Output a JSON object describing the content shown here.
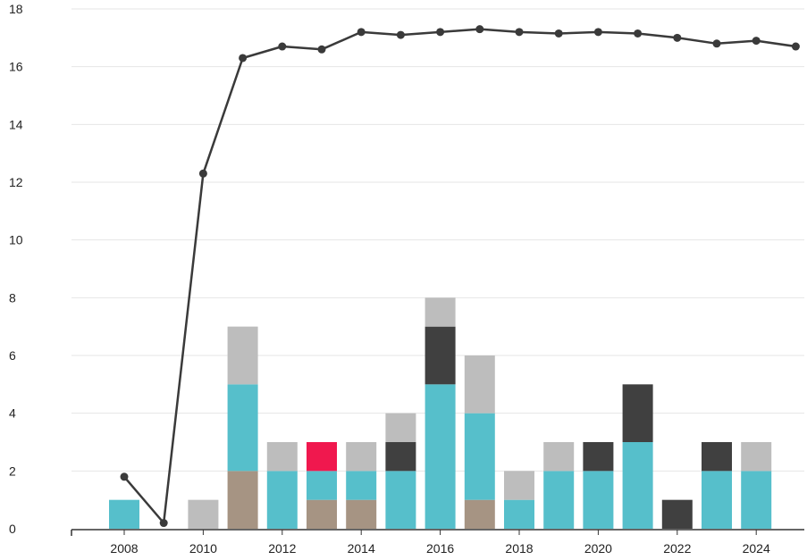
{
  "chart_data": {
    "type": "bar",
    "bar_layout": "stacked",
    "x": [
      2008,
      2009,
      2010,
      2011,
      2012,
      2013,
      2014,
      2015,
      2016,
      2017,
      2018,
      2019,
      2020,
      2021,
      2022,
      2023,
      2024,
      2025
    ],
    "x_tick_labels": [
      "2008",
      "2010",
      "2012",
      "2014",
      "2016",
      "2018",
      "2020",
      "2022",
      "2024"
    ],
    "y_tick_labels": [
      "0",
      "2",
      "4",
      "6",
      "8",
      "10",
      "12",
      "14",
      "16",
      "18"
    ],
    "ylim": [
      0,
      18
    ],
    "grid": true,
    "series": [
      {
        "color": "#a69483",
        "values": [
          0,
          0,
          0,
          2,
          0,
          1,
          1,
          0,
          0,
          1,
          0,
          0,
          0,
          0,
          0,
          0,
          0,
          0
        ]
      },
      {
        "color": "#56bfcb",
        "values": [
          1,
          0,
          0,
          3,
          2,
          1,
          1,
          2,
          5,
          3,
          1,
          2,
          2,
          3,
          0,
          2,
          2,
          0
        ]
      },
      {
        "color": "#f0184e",
        "values": [
          0,
          0,
          0,
          0,
          0,
          1,
          0,
          0,
          0,
          0,
          0,
          0,
          0,
          0,
          0,
          0,
          0,
          0
        ]
      },
      {
        "color": "#404040",
        "values": [
          0,
          0,
          0,
          0,
          0,
          0,
          0,
          1,
          2,
          0,
          0,
          0,
          1,
          2,
          1,
          1,
          0,
          0
        ]
      },
      {
        "color": "#bdbdbd",
        "values": [
          0,
          0,
          1,
          2,
          1,
          0,
          1,
          1,
          1,
          2,
          1,
          1,
          0,
          0,
          0,
          0,
          1,
          0
        ]
      }
    ],
    "line": {
      "color": "#3a3a3a",
      "values": [
        1.8,
        0.2,
        12.3,
        16.3,
        16.7,
        16.6,
        17.2,
        17.1,
        17.2,
        17.3,
        17.2,
        17.15,
        17.2,
        17.15,
        17.0,
        16.8,
        16.9,
        16.7
      ]
    }
  }
}
